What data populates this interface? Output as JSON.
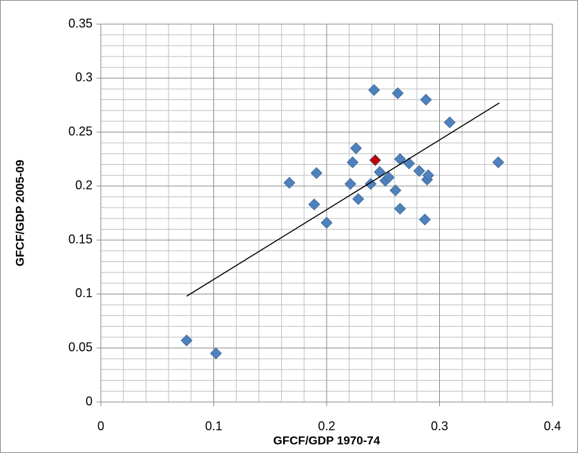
{
  "chart_data": {
    "type": "scatter",
    "x_label": "GFCF/GDP 1970-74",
    "y_label": "GFCF/GDP 2005-09",
    "xlim": [
      0,
      0.4
    ],
    "xticks": [
      0,
      0.1,
      0.2,
      0.3,
      0.4
    ],
    "ylim": [
      0,
      0.35
    ],
    "yticks": [
      0,
      0.05,
      0.1,
      0.15,
      0.2,
      0.25,
      0.3,
      0.35
    ],
    "grid": true,
    "series": [
      {
        "color": "#4f81bd",
        "x": [
          0.076,
          0.102,
          0.167,
          0.191,
          0.189,
          0.2,
          0.221,
          0.223,
          0.226,
          0.228,
          0.239,
          0.242,
          0.263,
          0.288,
          0.309,
          0.247,
          0.252,
          0.255,
          0.261,
          0.265,
          0.265,
          0.273,
          0.282,
          0.289,
          0.29,
          0.287,
          0.352
        ],
        "values": [
          0.057,
          0.045,
          0.203,
          0.212,
          0.183,
          0.166,
          0.202,
          0.222,
          0.235,
          0.188,
          0.202,
          0.289,
          0.286,
          0.28,
          0.259,
          0.213,
          0.205,
          0.208,
          0.196,
          0.179,
          0.225,
          0.221,
          0.214,
          0.206,
          0.21,
          0.169,
          0.222
        ]
      },
      {
        "color": "#c00000",
        "x": [
          0.243
        ],
        "values": [
          0.224
        ]
      }
    ],
    "trendline": {
      "color": "#000000",
      "x": [
        0.076,
        0.353
      ],
      "values": [
        0.098,
        0.277
      ]
    }
  }
}
